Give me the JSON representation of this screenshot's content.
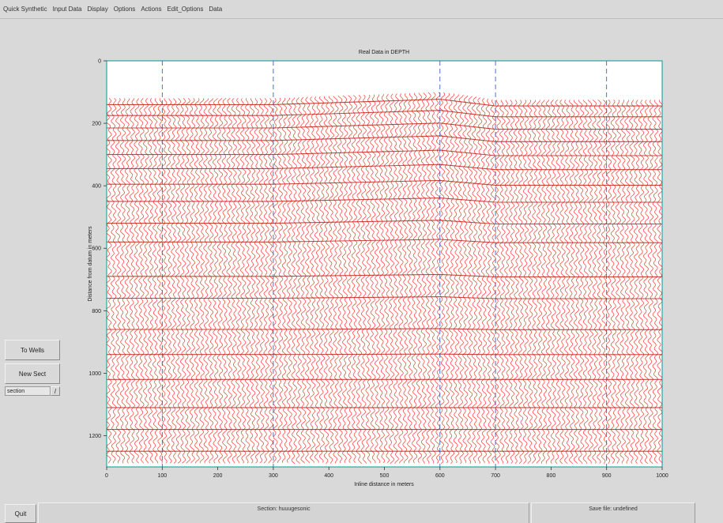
{
  "menubar": {
    "items": [
      "Quick Synthetic",
      "Input Data",
      "Display",
      "Options",
      "Actions",
      "Edit_Options",
      "Data"
    ]
  },
  "buttons": {
    "to_wells": "To Wells",
    "new_sect": "New Sect",
    "quit": "Quit"
  },
  "section_select": {
    "value": "section",
    "arrow": "/"
  },
  "status": {
    "section": "Section: huuugesonic",
    "save_file": "Save file: undefined"
  },
  "colors": {
    "trace": "#ff3b30",
    "gridline": "#1f4fb5",
    "plot_border": "#009999",
    "background": "#d9d9d9",
    "plot_background": "#ffffff"
  },
  "chart_data": {
    "type": "seismic-wiggle",
    "title": "Real Data in DEPTH",
    "xlabel": "Inline distance in meters",
    "ylabel": "Distance from datum in meters",
    "xlim": [
      0,
      1000
    ],
    "ylim": [
      0,
      1300
    ],
    "y_inverted": true,
    "xticks": [
      0,
      100,
      200,
      300,
      400,
      500,
      600,
      700,
      800,
      900,
      1000
    ],
    "yticks": [
      0,
      200,
      400,
      600,
      800,
      1000,
      1200
    ],
    "vertical_gridlines": [
      100,
      300,
      600,
      700,
      900
    ],
    "horizon_top": [
      {
        "x": 0,
        "y": 120
      },
      {
        "x": 300,
        "y": 120
      },
      {
        "x": 600,
        "y": 100
      },
      {
        "x": 700,
        "y": 125
      },
      {
        "x": 1000,
        "y": 125
      }
    ],
    "horizon_bottom": [
      {
        "x": 0,
        "y": 1290
      },
      {
        "x": 1000,
        "y": 1290
      }
    ]
  }
}
